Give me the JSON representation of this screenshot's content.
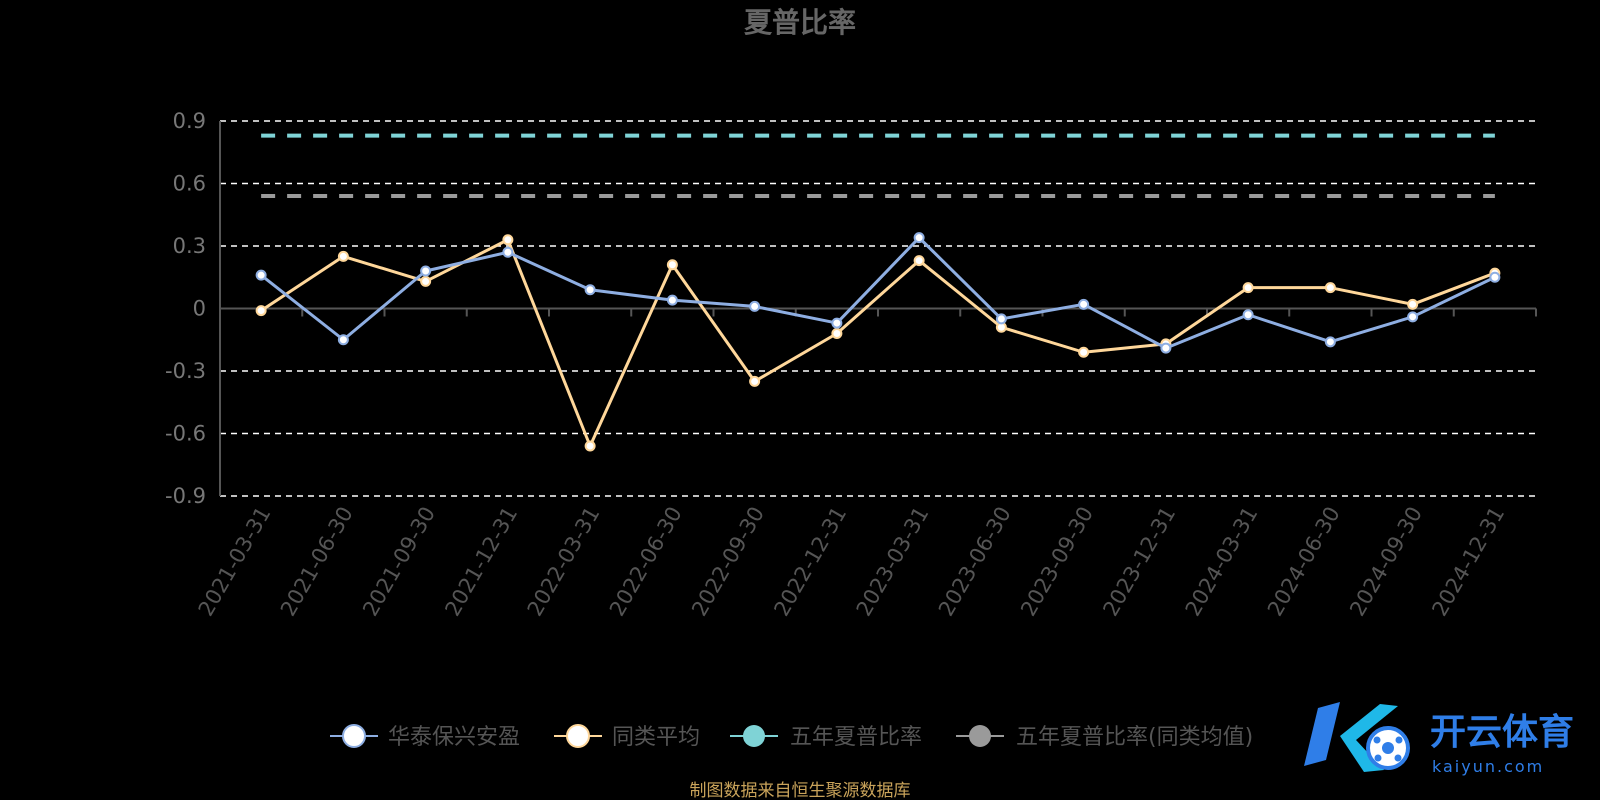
{
  "colors": {
    "series_main": "#8eaee2",
    "series_avg": "#ffd79a",
    "ref_five_year": "#7fd3d6",
    "ref_five_year_avg": "#9a9a9a",
    "grid": "#ffffff",
    "axis": "#555555",
    "source": "#c9a35a",
    "watermark": "#2f7ee8"
  },
  "chart_data": {
    "type": "line",
    "title": "夏普比率",
    "xlabel": "",
    "ylabel": "",
    "ylim": [
      -0.9,
      0.9
    ],
    "yticks": [
      "0.9",
      "0.6",
      "0.3",
      "0",
      "-0.3",
      "-0.6",
      "-0.9"
    ],
    "ytick_values": [
      0.9,
      0.6,
      0.3,
      0,
      -0.3,
      -0.6,
      -0.9
    ],
    "grid": true,
    "legend_position": "bottom",
    "categories": [
      "2021-03-31",
      "2021-06-30",
      "2021-09-30",
      "2021-12-31",
      "2022-03-31",
      "2022-06-30",
      "2022-09-30",
      "2022-12-31",
      "2023-03-31",
      "2023-06-30",
      "2023-09-30",
      "2023-12-31",
      "2024-03-31",
      "2024-06-30",
      "2024-09-30",
      "2024-12-31"
    ],
    "series": [
      {
        "name": "华泰保兴安盈",
        "values": [
          0.16,
          -0.15,
          0.18,
          0.27,
          0.09,
          0.04,
          0.01,
          -0.07,
          0.34,
          -0.05,
          0.02,
          -0.19,
          -0.03,
          -0.16,
          -0.04,
          0.15
        ]
      },
      {
        "name": "同类平均",
        "values": [
          -0.01,
          0.25,
          0.13,
          0.33,
          -0.66,
          0.21,
          -0.35,
          -0.12,
          0.23,
          -0.09,
          -0.21,
          -0.17,
          0.1,
          0.1,
          0.02,
          0.17
        ]
      }
    ],
    "reference_lines": [
      {
        "name": "五年夏普比率",
        "value": 0.83
      },
      {
        "name": "五年夏普比率(同类均值)",
        "value": 0.54
      }
    ]
  },
  "legend": {
    "items": [
      "华泰保兴安盈",
      "同类平均",
      "五年夏普比率",
      "五年夏普比率(同类均值)"
    ]
  },
  "source_note": "制图数据来自恒生聚源数据库",
  "watermark": {
    "brand": "开云体育",
    "domain": "kaiyun.com"
  }
}
